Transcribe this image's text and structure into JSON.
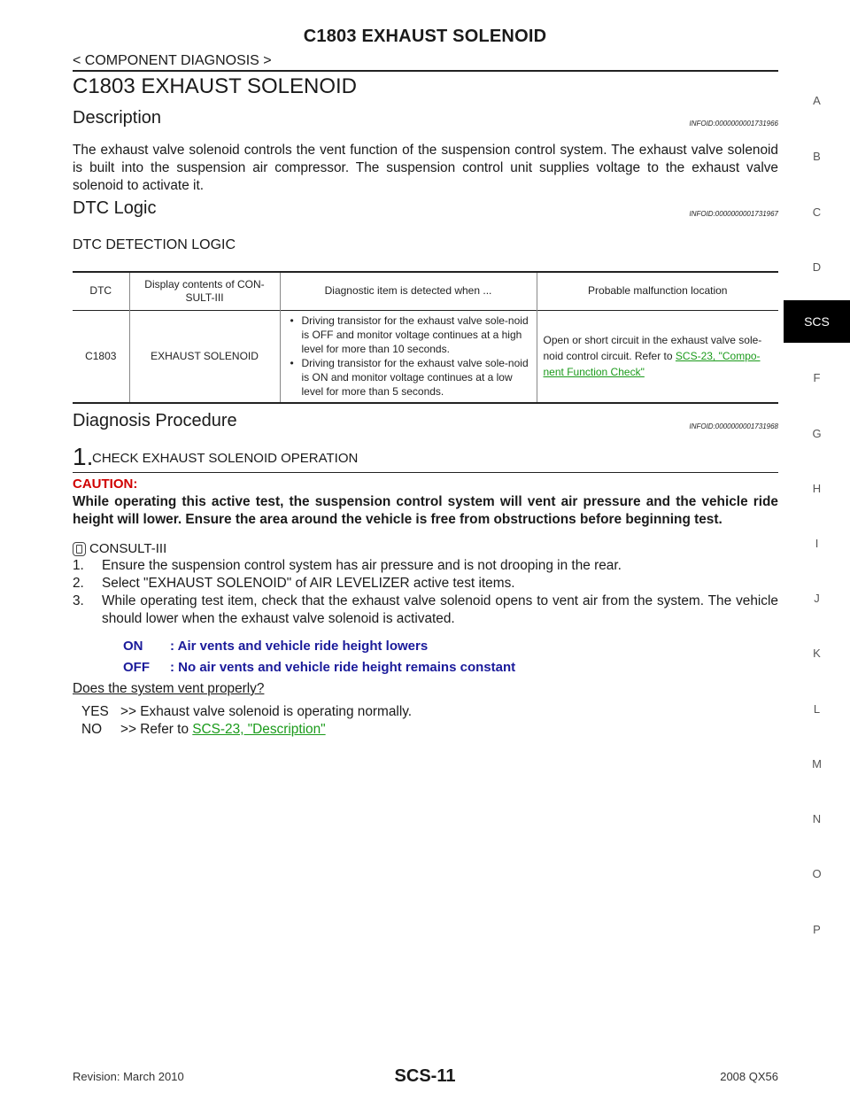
{
  "header": {
    "title": "C1803 EXHAUST SOLENOID",
    "subtitle": "< COMPONENT DIAGNOSIS >"
  },
  "main_title": "C1803 EXHAUST SOLENOID",
  "description": {
    "heading": "Description",
    "infoid": "INFOID:0000000001731966",
    "text": "The exhaust valve solenoid controls the vent function of the suspension control system. The exhaust valve solenoid is built into the suspension air compressor. The suspension control unit supplies voltage to the exhaust valve solenoid to activate it."
  },
  "dtc_logic": {
    "heading": "DTC Logic",
    "infoid": "INFOID:0000000001731967",
    "sub_heading": "DTC DETECTION LOGIC",
    "table": {
      "headers": [
        "DTC",
        "Display contents of CON-\nSULT-III",
        "Diagnostic item is detected when ...",
        "Probable malfunction location"
      ],
      "row": {
        "dtc": "C1803",
        "display": "EXHAUST SOLENOID",
        "conditions": [
          "Driving transistor for the exhaust valve sole-noid is OFF and monitor voltage continues at a high level for more than 10 seconds.",
          "Driving transistor for the exhaust valve sole-noid is ON and monitor voltage continues at a low level for more than 5 seconds."
        ],
        "location_text": "Open or short circuit in the exhaust valve sole-noid control circuit.  Refer to ",
        "location_link": "SCS-23, \"Compo-nent Function Check\""
      }
    }
  },
  "diagnosis": {
    "heading": "Diagnosis  Procedure",
    "infoid": "INFOID:0000000001731968",
    "step_number": "1.",
    "step_title": "CHECK EXHAUST SOLENOID OPERATION",
    "caution_label": "CAUTION:",
    "caution_text": "While operating this active test, the suspension control system will vent air pressure and the vehicle ride height will lower. Ensure the area around the vehicle is free from obstructions before beginning test.",
    "consult_label": "CONSULT-III",
    "steps": [
      {
        "n": "1.",
        "text": "Ensure the suspension control system has air pressure and is not drooping in the rear."
      },
      {
        "n": "2.",
        "text": "Select \"EXHAUST SOLENOID\" of AIR LEVELIZER active test items."
      },
      {
        "n": "3.",
        "text": "While operating test item, check that the exhaust valve solenoid opens to vent air from the system. The vehicle should lower when the exhaust valve solenoid is activated."
      }
    ],
    "results": [
      {
        "key": "ON",
        "value": ": Air vents and vehicle ride height lowers"
      },
      {
        "key": "OFF",
        "value": ": No air vents and vehicle ride height remains constant"
      }
    ],
    "question": "Does the system vent properly?",
    "answers": [
      {
        "key": "YES",
        "text": ">> Exhaust valve solenoid is operating normally.",
        "link": ""
      },
      {
        "key": "NO",
        "text": ">> Refer to ",
        "link": "SCS-23, \"Description\""
      }
    ]
  },
  "side_index": {
    "letters": [
      "A",
      "B",
      "C",
      "D",
      "SCS",
      "F",
      "G",
      "H",
      "I",
      "J",
      "K",
      "L",
      "M",
      "N",
      "O",
      "P"
    ],
    "active": "SCS"
  },
  "footer": {
    "revision": "Revision: March 2010",
    "page": "SCS-11",
    "model": "2008 QX56"
  }
}
